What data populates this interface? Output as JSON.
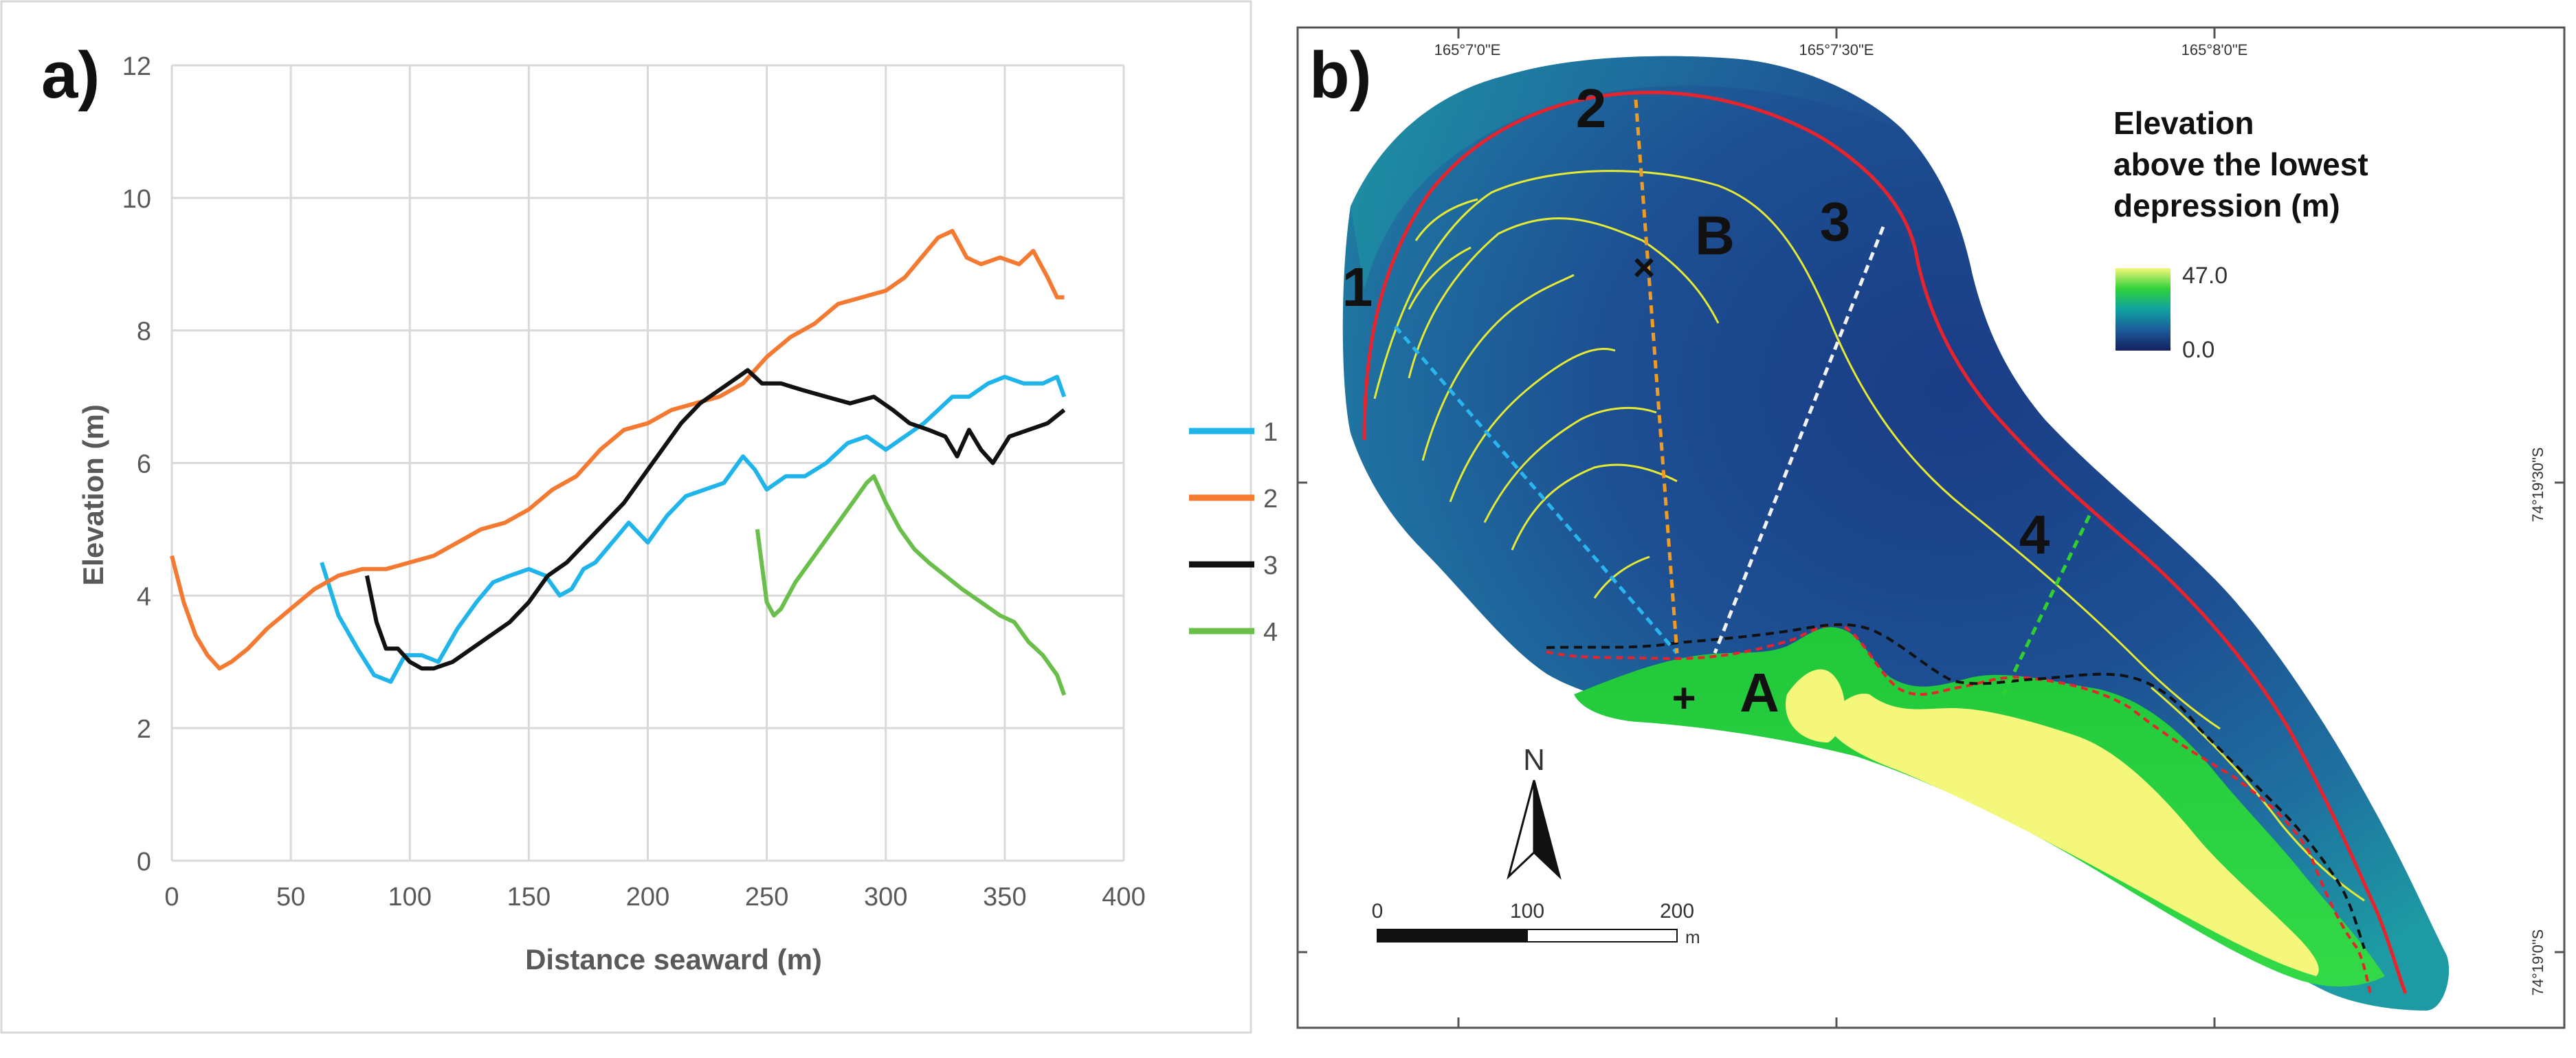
{
  "figure": {
    "panel_a_label": "a)",
    "panel_b_label": "b)"
  },
  "chart_data": {
    "type": "line",
    "title": "",
    "xlabel": "Distance seaward (m)",
    "ylabel": "Elevation (m)",
    "xlim": [
      0,
      400
    ],
    "ylim": [
      0,
      12
    ],
    "xticks": [
      0,
      50,
      100,
      150,
      200,
      250,
      300,
      350,
      400
    ],
    "yticks": [
      0,
      2,
      4,
      6,
      8,
      10,
      12
    ],
    "grid": true,
    "legend_position": "right",
    "series": [
      {
        "name": "1",
        "color": "#1fb4ea",
        "x": [
          63,
          70,
          78,
          85,
          92,
          98,
          105,
          112,
          120,
          128,
          135,
          142,
          150,
          157,
          163,
          168,
          173,
          178,
          185,
          192,
          200,
          208,
          216,
          224,
          232,
          240,
          245,
          250,
          258,
          266,
          275,
          284,
          292,
          300,
          308,
          316,
          322,
          328,
          335,
          343,
          350,
          358,
          366,
          372,
          375
        ],
        "y": [
          4.5,
          3.7,
          3.2,
          2.8,
          2.7,
          3.1,
          3.1,
          3.0,
          3.5,
          3.9,
          4.2,
          4.3,
          4.4,
          4.3,
          4.0,
          4.1,
          4.4,
          4.5,
          4.8,
          5.1,
          4.8,
          5.2,
          5.5,
          5.6,
          5.7,
          6.1,
          5.9,
          5.6,
          5.8,
          5.8,
          6.0,
          6.3,
          6.4,
          6.2,
          6.4,
          6.6,
          6.8,
          7.0,
          7.0,
          7.2,
          7.3,
          7.2,
          7.2,
          7.3,
          7.0
        ]
      },
      {
        "name": "2",
        "color": "#f47a32",
        "x": [
          0,
          5,
          10,
          15,
          20,
          25,
          32,
          40,
          50,
          60,
          70,
          80,
          90,
          100,
          110,
          120,
          130,
          140,
          150,
          160,
          170,
          180,
          190,
          200,
          210,
          220,
          230,
          240,
          250,
          260,
          270,
          280,
          290,
          300,
          308,
          315,
          322,
          328,
          334,
          340,
          348,
          356,
          362,
          368,
          372,
          375
        ],
        "y": [
          4.6,
          3.9,
          3.4,
          3.1,
          2.9,
          3.0,
          3.2,
          3.5,
          3.8,
          4.1,
          4.3,
          4.4,
          4.4,
          4.5,
          4.6,
          4.8,
          5.0,
          5.1,
          5.3,
          5.6,
          5.8,
          6.2,
          6.5,
          6.6,
          6.8,
          6.9,
          7.0,
          7.2,
          7.6,
          7.9,
          8.1,
          8.4,
          8.5,
          8.6,
          8.8,
          9.1,
          9.4,
          9.5,
          9.1,
          9.0,
          9.1,
          9.0,
          9.2,
          8.8,
          8.5,
          8.5
        ]
      },
      {
        "name": "3",
        "color": "#111111",
        "x": [
          82,
          86,
          90,
          95,
          100,
          105,
          110,
          118,
          126,
          134,
          142,
          150,
          158,
          166,
          174,
          182,
          190,
          198,
          206,
          214,
          222,
          230,
          238,
          242,
          248,
          256,
          265,
          275,
          285,
          295,
          303,
          310,
          318,
          325,
          330,
          335,
          340,
          345,
          352,
          360,
          368,
          375
        ],
        "y": [
          4.3,
          3.6,
          3.2,
          3.2,
          3.0,
          2.9,
          2.9,
          3.0,
          3.2,
          3.4,
          3.6,
          3.9,
          4.3,
          4.5,
          4.8,
          5.1,
          5.4,
          5.8,
          6.2,
          6.6,
          6.9,
          7.1,
          7.3,
          7.4,
          7.2,
          7.2,
          7.1,
          7.0,
          6.9,
          7.0,
          6.8,
          6.6,
          6.5,
          6.4,
          6.1,
          6.5,
          6.2,
          6.0,
          6.4,
          6.5,
          6.6,
          6.8
        ]
      },
      {
        "name": "4",
        "color": "#6abf4b",
        "x": [
          246,
          250,
          253,
          256,
          262,
          270,
          278,
          286,
          292,
          295,
          300,
          306,
          312,
          318,
          325,
          332,
          340,
          348,
          354,
          360,
          366,
          372,
          375
        ],
        "y": [
          5.0,
          3.9,
          3.7,
          3.8,
          4.2,
          4.6,
          5.0,
          5.4,
          5.7,
          5.8,
          5.4,
          5.0,
          4.7,
          4.5,
          4.3,
          4.1,
          3.9,
          3.7,
          3.6,
          3.3,
          3.1,
          2.8,
          2.5
        ]
      }
    ]
  },
  "map": {
    "coord_labels_top": [
      "165°7'0\"E",
      "165°7'30\"E",
      "165°8'0\"E"
    ],
    "coord_labels_right": [
      "74°19'30\"S",
      "74°19'0\"S"
    ],
    "transect_labels": [
      "1",
      "2",
      "3",
      "4"
    ],
    "feature_labels": [
      "A",
      "B"
    ],
    "colorbar_title_lines": [
      "Elevation",
      "above the lowest",
      "depression (m)"
    ],
    "colorbar_max": "47.0",
    "colorbar_min": "0.0",
    "north_label": "N",
    "scale_labels": [
      "0",
      "100",
      "200"
    ],
    "scale_unit": "m",
    "marker_plus": "+",
    "marker_x": "×",
    "colors": {
      "ocean_blue": "#1e4e90",
      "teal": "#1d97a0",
      "green": "#1fcc3a",
      "yellow": "#f4f77a",
      "red_line": "#e8232b",
      "contour": "#e6ea33",
      "t1": "#29b5ef",
      "t2": "#f29b22",
      "t3": "#f2f2f2",
      "t4": "#2fd02f"
    }
  }
}
